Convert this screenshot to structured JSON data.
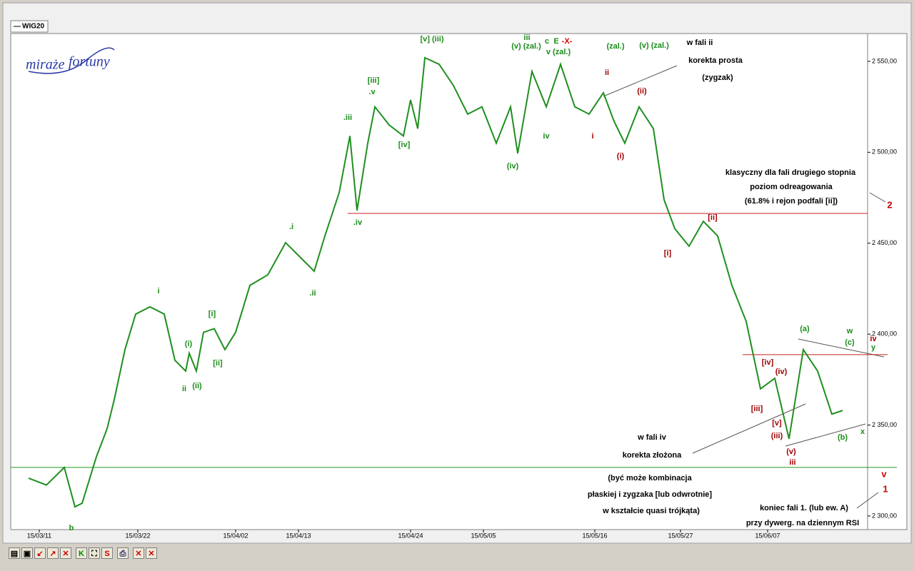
{
  "chart_data": {
    "type": "line",
    "legend": "WIG20",
    "logo": [
      "miraże",
      "fortuny"
    ],
    "color": "#1f8f1f",
    "x": [
      2.5,
      5,
      7.5,
      9,
      10,
      12,
      13.5,
      14.5,
      16,
      17.5,
      19.5,
      21.5,
      23,
      24.5,
      25,
      26,
      27,
      28.5,
      30,
      31.5,
      33.5,
      36,
      38.5,
      40,
      42.5,
      44,
      46,
      47.5,
      48.5,
      50,
      51,
      53,
      55,
      56,
      57,
      58,
      60,
      62,
      64,
      66,
      68,
      70,
      71,
      73,
      75,
      77,
      79,
      81,
      83,
      84.5,
      86,
      88,
      90,
      91.5,
      93,
      95,
      97,
      99,
      101,
      103,
      105,
      107,
      109,
      111,
      113,
      115,
      116.5
    ],
    "values": [
      2320.8,
      2317,
      2326.7,
      2305,
      2307,
      2332.6,
      2348,
      2364,
      2391.5,
      2411,
      2415,
      2411,
      2385.6,
      2379.7,
      2389.5,
      2379.7,
      2401,
      2403,
      2391.5,
      2401,
      2426.8,
      2432.6,
      2450.3,
      2444.4,
      2434.6,
      2454,
      2477.8,
      2509,
      2468,
      2505,
      2525,
      2515,
      2509,
      2528.8,
      2513,
      2552,
      2548.4,
      2536.7,
      2521,
      2525,
      2505,
      2525,
      2499.4,
      2544.5,
      2525,
      2548.4,
      2525,
      2521,
      2532.7,
      2517,
      2505,
      2525,
      2513,
      2473.9,
      2458,
      2448.4,
      2462,
      2454,
      2426.8,
      2407,
      2369.9,
      2375.7,
      2342.4,
      2391.5,
      2379.7,
      2356,
      2358
    ],
    "xlim": [
      0,
      120
    ],
    "xticks": [
      {
        "value": 4,
        "label": "15/03/11"
      },
      {
        "value": 17.8,
        "label": "15/03/22"
      },
      {
        "value": 31.5,
        "label": "15/04/02"
      },
      {
        "value": 40.3,
        "label": "15/04/13"
      },
      {
        "value": 56,
        "label": "15/04/24"
      },
      {
        "value": 66.2,
        "label": "15/05/05"
      },
      {
        "value": 81.8,
        "label": "15/05/16"
      },
      {
        "value": 93.8,
        "label": "15/05/27"
      },
      {
        "value": 106,
        "label": "15/06/07"
      }
    ],
    "ylim": [
      2292.5,
      2565.3
    ],
    "yticks": [
      {
        "value": 2300,
        "label": "2 300,00"
      },
      {
        "value": 2350,
        "label": "2 350,00"
      },
      {
        "value": 2400,
        "label": "2 400,00"
      },
      {
        "value": 2450,
        "label": "2 450,00"
      },
      {
        "value": 2500,
        "label": "2 500,00"
      },
      {
        "value": 2550,
        "label": "2 550,00"
      }
    ],
    "levels": [
      {
        "value": 2466.4,
        "color": "#cc2222"
      },
      {
        "value": 2388.7,
        "color": "#cc2222"
      },
      {
        "value": 2326.7,
        "color": "#229922"
      }
    ],
    "annotations": [
      {
        "text": "b",
        "color": "#1a8c1a"
      },
      {
        "text": "i",
        "color": "#1a8c1a"
      },
      {
        "text": "(i)",
        "color": "#1a8c1a"
      },
      {
        "text": "ii",
        "color": "#1a8c1a"
      },
      {
        "text": "(ii)",
        "color": "#1a8c1a"
      },
      {
        "text": "[i]",
        "color": "#1a8c1a"
      },
      {
        "text": "[ii]",
        "color": "#1a8c1a"
      },
      {
        "text": ".i",
        "color": "#1a8c1a"
      },
      {
        "text": ".ii",
        "color": "#1a8c1a"
      },
      {
        "text": ".iii",
        "color": "#1a8c1a"
      },
      {
        "text": ".iv",
        "color": "#1a8c1a"
      },
      {
        "text": "[iii]",
        "color": "#1a8c1a"
      },
      {
        "text": ".v",
        "color": "#1a8c1a"
      },
      {
        "text": "[iv]",
        "color": "#1a8c1a"
      },
      {
        "text": "[v] (iii)",
        "color": "#1a8c1a"
      },
      {
        "text": "iii",
        "color": "#1a8c1a"
      },
      {
        "text": "(v) (zal.)",
        "color": "#1a8c1a"
      },
      {
        "text": "c",
        "color": "#1a8c1a"
      },
      {
        "text": "E",
        "color": "#1a8c1a"
      },
      {
        "text": "-X-",
        "color": "#cc0000"
      },
      {
        "text": "v (zal.)",
        "color": "#1a8c1a"
      },
      {
        "text": "iv",
        "color": "#1a8c1a"
      },
      {
        "text": "(iv)",
        "color": "#1a8c1a"
      },
      {
        "text": "(zal.)",
        "color": "#1a8c1a"
      },
      {
        "text": "(v) (zal.)",
        "color": "#1a8c1a"
      },
      {
        "text": "(a)",
        "color": "#1a8c1a"
      },
      {
        "text": "w",
        "color": "#1a8c1a"
      },
      {
        "text": "(c)",
        "color": "#1a8c1a"
      },
      {
        "text": "(b)",
        "color": "#1a8c1a"
      },
      {
        "text": "x",
        "color": "#1a8c1a"
      },
      {
        "text": "y",
        "color": "#1a8c1a"
      },
      {
        "text": "ii",
        "color": "#a00000"
      },
      {
        "text": "(ii)",
        "color": "#a00000"
      },
      {
        "text": "i",
        "color": "#a00000"
      },
      {
        "text": "(i)",
        "color": "#a00000"
      },
      {
        "text": "[ii]",
        "color": "#a00000"
      },
      {
        "text": "[i]",
        "color": "#a00000"
      },
      {
        "text": "[iv]",
        "color": "#a00000"
      },
      {
        "text": "(iv)",
        "color": "#a00000"
      },
      {
        "text": "[iii]",
        "color": "#a00000"
      },
      {
        "text": "[v]",
        "color": "#a00000"
      },
      {
        "text": "(iii)",
        "color": "#a00000"
      },
      {
        "text": "(v)",
        "color": "#a00000"
      },
      {
        "text": "iii",
        "color": "#a00000"
      },
      {
        "text": "iv",
        "color": "#a00000"
      },
      {
        "text": "2",
        "color": "#cc0000"
      },
      {
        "text": "v",
        "color": "#cc0000"
      },
      {
        "text": "1",
        "color": "#cc0000"
      },
      {
        "text": "w fali ii",
        "color": "#000000"
      },
      {
        "text": "korekta prosta",
        "color": "#000000"
      },
      {
        "text": "(zygzak)",
        "color": "#000000"
      },
      {
        "text": "klasyczny dla fali drugiego stopnia",
        "color": "#000000"
      },
      {
        "text": "poziom odreagowania",
        "color": "#000000"
      },
      {
        "text": "(61.8% i rejon podfali [ii])",
        "color": "#000000"
      },
      {
        "text": "w fali iv",
        "color": "#000000"
      },
      {
        "text": "korekta złożona",
        "color": "#000000"
      },
      {
        "text": "(być może kombinacja",
        "color": "#000000"
      },
      {
        "text": "płaskiej i zygzaka [lub odwrotnie]",
        "color": "#000000"
      },
      {
        "text": "w kształcie quasi trójkąta)",
        "color": "#000000"
      },
      {
        "text": "koniec fali 1. (lub ew. A)",
        "color": "#000000"
      },
      {
        "text": "przy dywerg. na dziennym RSI",
        "color": "#000000"
      }
    ]
  },
  "toolbar": [
    "K",
    "S"
  ]
}
